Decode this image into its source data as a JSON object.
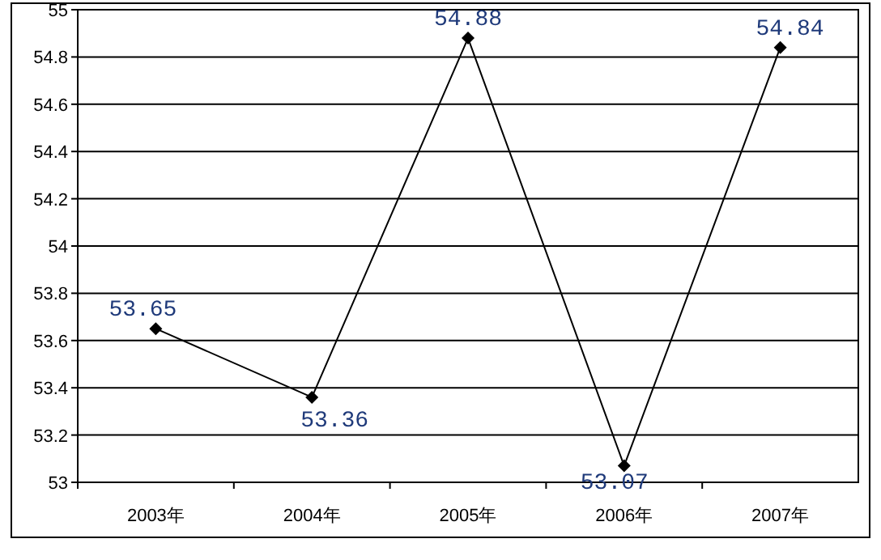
{
  "chart_data": {
    "type": "line",
    "categories": [
      "2003年",
      "2004年",
      "2005年",
      "2006年",
      "2007年"
    ],
    "series": [
      {
        "color": "#000000",
        "values": [
          53.65,
          53.36,
          54.88,
          53.07,
          54.84
        ]
      }
    ],
    "ylim": [
      53,
      55
    ],
    "yticks": [
      53,
      53.2,
      53.4,
      53.6,
      53.8,
      54,
      54.2,
      54.4,
      54.6,
      54.8,
      55
    ],
    "grid": "y",
    "marker": "diamond",
    "data_labels": true
  }
}
